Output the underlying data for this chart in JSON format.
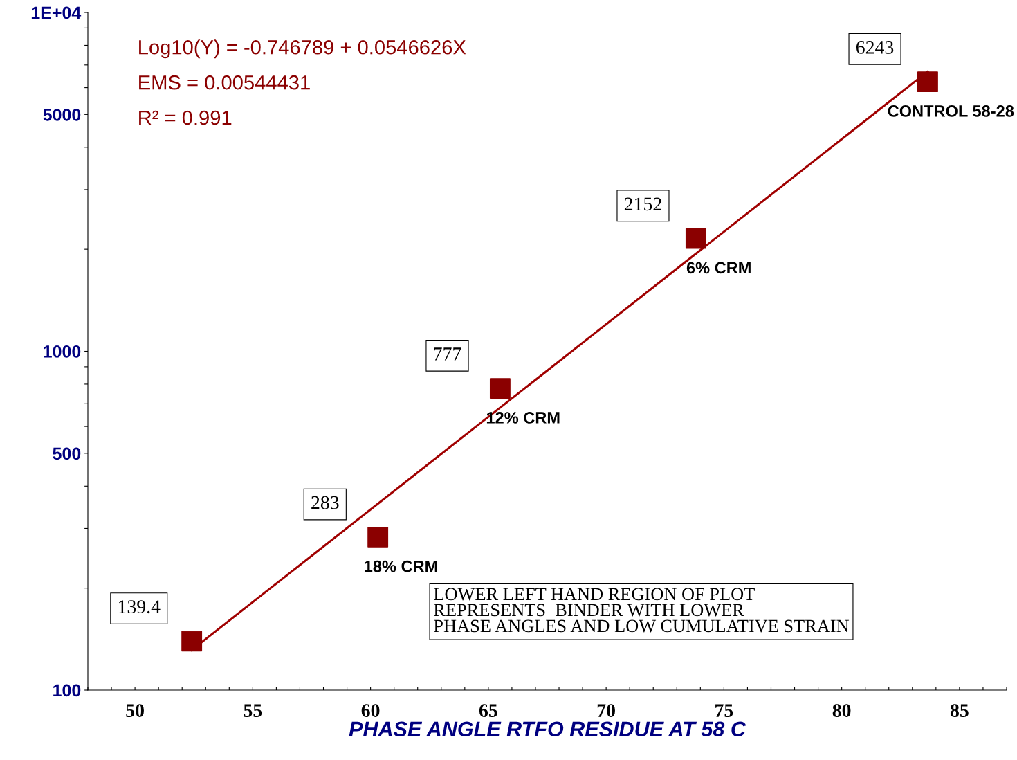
{
  "chart_data": {
    "type": "scatter",
    "xlabel": "PHASE ANGLE RTFO RESIDUE AT 58 C",
    "xlim": [
      48,
      87
    ],
    "xticks": [
      {
        "value": 48,
        "label": null
      },
      {
        "value": 49,
        "label": null
      },
      50,
      {
        "value": 51,
        "label": null
      },
      {
        "value": 52,
        "label": null
      },
      {
        "value": 53,
        "label": null
      },
      {
        "value": 54,
        "label": null
      },
      55,
      {
        "value": 56,
        "label": null
      },
      {
        "value": 57,
        "label": null
      },
      {
        "value": 58,
        "label": null
      },
      {
        "value": 59,
        "label": null
      },
      60,
      {
        "value": 61,
        "label": null
      },
      {
        "value": 62,
        "label": null
      },
      {
        "value": 63,
        "label": null
      },
      {
        "value": 64,
        "label": null
      },
      65,
      {
        "value": 66,
        "label": null
      },
      {
        "value": 67,
        "label": null
      },
      {
        "value": 68,
        "label": null
      },
      {
        "value": 69,
        "label": null
      },
      70,
      {
        "value": 71,
        "label": null
      },
      {
        "value": 72,
        "label": null
      },
      {
        "value": 73,
        "label": null
      },
      {
        "value": 74,
        "label": null
      },
      75,
      {
        "value": 76,
        "label": null
      },
      {
        "value": 77,
        "label": null
      },
      {
        "value": 78,
        "label": null
      },
      {
        "value": 79,
        "label": null
      },
      80,
      {
        "value": 81,
        "label": null
      },
      {
        "value": 82,
        "label": null
      },
      {
        "value": 83,
        "label": null
      },
      {
        "value": 84,
        "label": null
      },
      85,
      {
        "value": 86,
        "label": null
      },
      {
        "value": 87,
        "label": null
      }
    ],
    "log": "y",
    "ylim": [
      100,
      10000
    ],
    "yticks": [
      100,
      {
        "value": 200,
        "label": null
      },
      {
        "value": 300,
        "label": null
      },
      {
        "value": 400,
        "label": null
      },
      500,
      {
        "value": 600,
        "label": null
      },
      {
        "value": 700,
        "label": null
      },
      {
        "value": 800,
        "label": null
      },
      {
        "value": 900,
        "label": null
      },
      1000,
      {
        "value": 2000,
        "label": null
      },
      {
        "value": 3000,
        "label": null
      },
      {
        "value": 4000,
        "label": null
      },
      5000,
      {
        "value": 6000,
        "label": null
      },
      {
        "value": 7000,
        "label": null
      },
      {
        "value": 8000,
        "label": null
      },
      {
        "value": 9000,
        "label": null
      },
      {
        "value": 10000,
        "label": "1E+04"
      }
    ],
    "grid": false,
    "series": [
      {
        "type": "line",
        "color": "#a00000",
        "line_style": "solid",
        "marker": "none",
        "x": [
          52.4,
          83.65
        ],
        "values": [
          131.1,
          6694
        ]
      },
      {
        "color": "#8b0000",
        "marker": "square",
        "x": [
          52.41,
          60.31,
          65.5,
          73.81,
          83.65
        ],
        "values": [
          139.4,
          283,
          777,
          2152,
          6243
        ],
        "value_labels": [
          "139.4",
          "283",
          "777",
          "2152",
          "6243"
        ]
      }
    ],
    "annotations": [
      "Log10(Y) = -0.746789 + 0.0546626X",
      "EMS = 0.00544431",
      "R² = 0.991",
      {
        "text": "18% CRM",
        "x": 60.31,
        "y": 283
      },
      {
        "text": "12% CRM",
        "x": 65.5,
        "y": 777
      },
      {
        "text": "6% CRM",
        "x": 73.81,
        "y": 2152
      },
      {
        "text": "CONTROL 58-28",
        "x": 83.65,
        "y": 6243
      },
      "LOWER LEFT HAND REGION OF PLOT\nREPRESENTS  BINDER WITH LOWER\nPHASE ANGLES AND LOW CUMULATIVE STRAIN"
    ]
  }
}
